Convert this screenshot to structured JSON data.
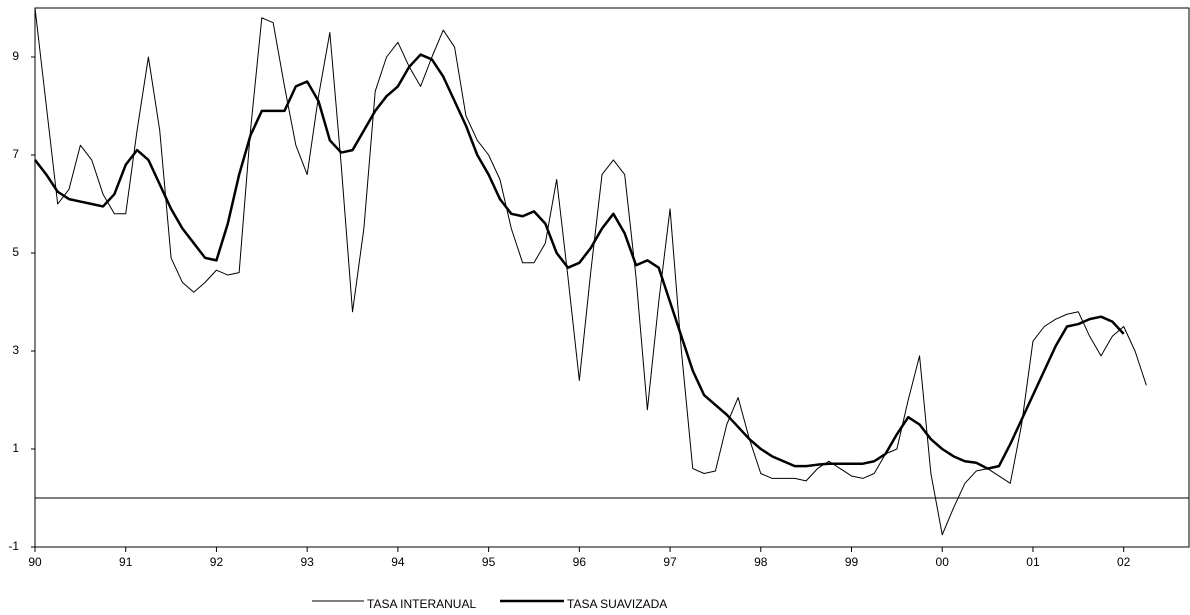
{
  "chart_data": {
    "type": "line",
    "x": [
      1990,
      1990.125,
      1990.25,
      1990.375,
      1990.5,
      1990.625,
      1990.75,
      1990.875,
      1991,
      1991.125,
      1991.25,
      1991.375,
      1991.5,
      1991.625,
      1991.75,
      1991.875,
      1992,
      1992.125,
      1992.25,
      1992.375,
      1992.5,
      1992.625,
      1992.75,
      1992.875,
      1993,
      1993.125,
      1993.25,
      1993.375,
      1993.5,
      1993.625,
      1993.75,
      1993.875,
      1994,
      1994.125,
      1994.25,
      1994.375,
      1994.5,
      1994.625,
      1994.75,
      1994.875,
      1995,
      1995.125,
      1995.25,
      1995.375,
      1995.5,
      1995.625,
      1995.75,
      1995.875,
      1996,
      1996.125,
      1996.25,
      1996.375,
      1996.5,
      1996.625,
      1996.75,
      1996.875,
      1997,
      1997.125,
      1997.25,
      1997.375,
      1997.5,
      1997.625,
      1997.75,
      1997.875,
      1998,
      1998.125,
      1998.25,
      1998.375,
      1998.5,
      1998.625,
      1998.75,
      1998.875,
      1999,
      1999.125,
      1999.25,
      1999.375,
      1999.5,
      1999.625,
      1999.75,
      1999.875,
      2000,
      2000.125,
      2000.25,
      2000.375,
      2000.5,
      2000.625,
      2000.75,
      2000.875,
      2001,
      2001.125,
      2001.25,
      2001.375,
      2001.5,
      2001.625,
      2001.75,
      2001.875,
      2002,
      2002.125,
      2002.25
    ],
    "series": [
      {
        "name": "TASA INTERANUAL",
        "color": "#000000",
        "width": 1,
        "values": [
          10,
          8.0,
          6.0,
          6.3,
          7.2,
          6.9,
          6.2,
          5.8,
          5.8,
          7.5,
          9.0,
          7.5,
          4.9,
          4.4,
          4.2,
          4.4,
          4.65,
          4.55,
          4.6,
          7.5,
          9.8,
          9.7,
          8.4,
          7.2,
          6.6,
          8.2,
          9.5,
          6.8,
          3.8,
          5.5,
          8.3,
          9.0,
          9.3,
          8.8,
          8.4,
          9.0,
          9.55,
          9.2,
          7.8,
          7.3,
          7.0,
          6.5,
          5.5,
          4.8,
          4.8,
          5.2,
          6.5,
          4.5,
          2.4,
          4.6,
          6.6,
          6.9,
          6.6,
          4.5,
          1.8,
          4.0,
          5.9,
          3.0,
          0.6,
          0.5,
          0.55,
          1.5,
          2.05,
          1.2,
          0.5,
          0.4,
          0.4,
          0.4,
          0.35,
          0.6,
          0.75,
          0.6,
          0.45,
          0.4,
          0.5,
          0.9,
          1.0,
          2.0,
          2.9,
          0.5,
          -0.75,
          -0.2,
          0.3,
          0.55,
          0.6,
          0.45,
          0.3,
          1.5,
          3.2,
          3.5,
          3.65,
          3.75,
          3.8,
          3.3,
          2.9,
          3.3,
          3.5,
          3.0,
          2.3
        ]
      },
      {
        "name": "TASA SUAVIZADA",
        "color": "#000000",
        "width": 2.5,
        "values": [
          6.9,
          6.6,
          6.25,
          6.1,
          6.05,
          6.0,
          5.95,
          6.2,
          6.8,
          7.1,
          6.9,
          6.4,
          5.9,
          5.5,
          5.2,
          4.9,
          4.85,
          5.6,
          6.6,
          7.4,
          7.9,
          7.9,
          7.9,
          8.4,
          8.5,
          8.1,
          7.3,
          7.05,
          7.1,
          7.5,
          7.9,
          8.2,
          8.4,
          8.8,
          9.05,
          8.95,
          8.6,
          8.1,
          7.6,
          7.0,
          6.6,
          6.1,
          5.8,
          5.75,
          5.85,
          5.6,
          5.0,
          4.7,
          4.8,
          5.1,
          5.5,
          5.8,
          5.4,
          4.75,
          4.85,
          4.7,
          4.0,
          3.3,
          2.6,
          2.1,
          1.9,
          1.7,
          1.45,
          1.2,
          1.0,
          0.85,
          0.75,
          0.65,
          0.65,
          0.68,
          0.7,
          0.7,
          0.7,
          0.7,
          0.75,
          0.9,
          1.3,
          1.65,
          1.5,
          1.2,
          1.0,
          0.85,
          0.75,
          0.72,
          0.6,
          0.65,
          1.1,
          1.6,
          2.1,
          2.6,
          3.1,
          3.5,
          3.55,
          3.65,
          3.7,
          3.6,
          3.35,
          null,
          null
        ]
      }
    ],
    "xlim": [
      1990,
      2002.72
    ],
    "xticks": [
      {
        "value": 1990,
        "label": "90"
      },
      {
        "value": 1991,
        "label": "91"
      },
      {
        "value": 1992,
        "label": "92"
      },
      {
        "value": 1993,
        "label": "93"
      },
      {
        "value": 1994,
        "label": "94"
      },
      {
        "value": 1995,
        "label": "95"
      },
      {
        "value": 1996,
        "label": "96"
      },
      {
        "value": 1997,
        "label": "97"
      },
      {
        "value": 1998,
        "label": "98"
      },
      {
        "value": 1999,
        "label": "99"
      },
      {
        "value": 2000,
        "label": "00"
      },
      {
        "value": 2001,
        "label": "01"
      },
      {
        "value": 2002,
        "label": "02"
      }
    ],
    "ylim": [
      -1,
      10
    ],
    "yticks": [
      -1,
      1,
      3,
      5,
      7,
      9
    ],
    "reference_line": 0,
    "legend": "bottom"
  }
}
